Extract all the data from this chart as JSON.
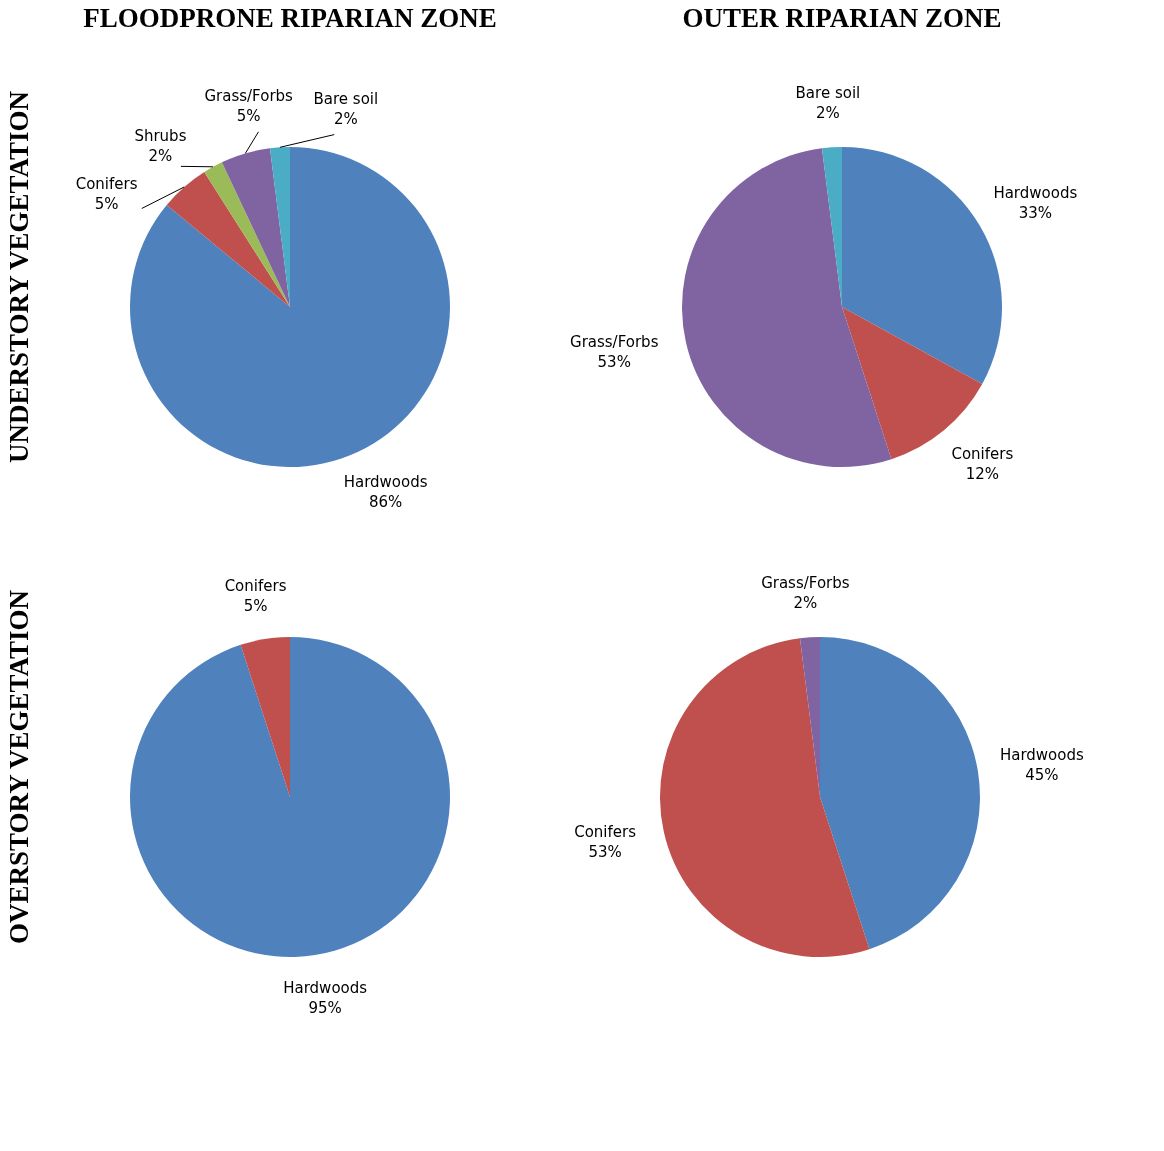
{
  "chart_data": [
    {
      "type": "pie",
      "title": "FLOODPRONE RIPARIAN ZONE",
      "ylabel": "UNDERSTORY VEGETATION",
      "categories": [
        "Hardwoods",
        "Conifers",
        "Shrubs",
        "Grass/Forbs",
        "Bare soil"
      ],
      "values": [
        86,
        5,
        2,
        5,
        2
      ],
      "value_labels": [
        "86%",
        "5%",
        "2%",
        "5%",
        "2%"
      ],
      "colors": [
        "#4f81bd",
        "#c0504d",
        "#9bbb59",
        "#8064a2",
        "#4bacc6"
      ]
    },
    {
      "type": "pie",
      "title": "OUTER RIPARIAN ZONE",
      "categories": [
        "Hardwoods",
        "Conifers",
        "Grass/Forbs",
        "Bare soil"
      ],
      "values": [
        33,
        12,
        53,
        2
      ],
      "value_labels": [
        "33%",
        "12%",
        "53%",
        "2%"
      ],
      "colors": [
        "#4f81bd",
        "#c0504d",
        "#8064a2",
        "#4bacc6"
      ]
    },
    {
      "type": "pie",
      "ylabel": "OVERSTORY VEGETATION",
      "categories": [
        "Hardwoods",
        "Conifers"
      ],
      "values": [
        95,
        5
      ],
      "value_labels": [
        "95%",
        "5%"
      ],
      "colors": [
        "#4f81bd",
        "#c0504d"
      ]
    },
    {
      "type": "pie",
      "categories": [
        "Hardwoods",
        "Conifers",
        "Grass/Forbs"
      ],
      "values": [
        45,
        53,
        2
      ],
      "value_labels": [
        "45%",
        "53%",
        "2%"
      ],
      "colors": [
        "#4f81bd",
        "#c0504d",
        "#8064a2"
      ]
    }
  ]
}
